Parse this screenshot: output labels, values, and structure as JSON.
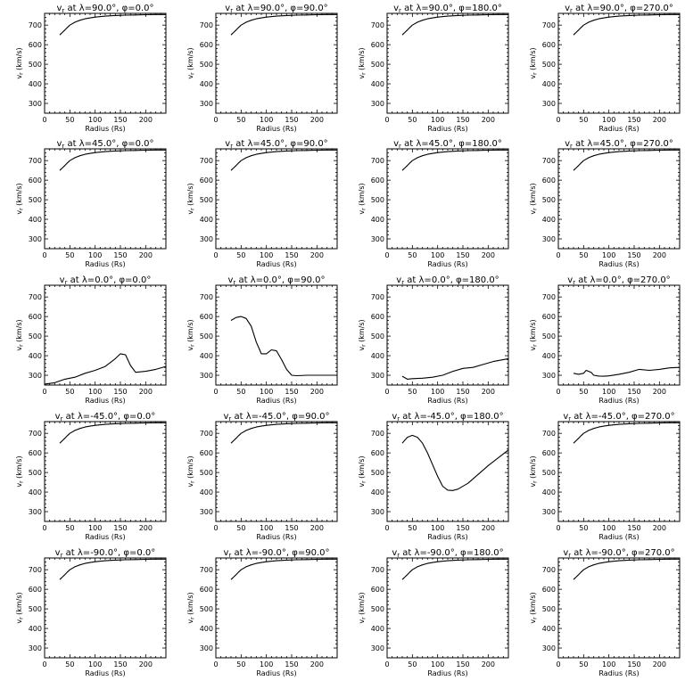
{
  "chart_data": [
    {
      "type": "line",
      "title": "v_r at λ=90.0°, φ=0.0°",
      "xlabel": "Radius (Rs)",
      "ylabel": "v_r (km/s)",
      "xlim": [
        0,
        240
      ],
      "ylim": [
        250,
        760
      ],
      "x": [
        30,
        35,
        40,
        45,
        50,
        60,
        70,
        80,
        90,
        100,
        120,
        140,
        160,
        180,
        200,
        220,
        240
      ],
      "series": [
        {
          "values": [
            650,
            662,
            675,
            688,
            700,
            715,
            725,
            732,
            737,
            741,
            746,
            749,
            751,
            752,
            753,
            754,
            754
          ]
        }
      ]
    },
    {
      "type": "line",
      "title": "v_r at λ=90.0°, φ=90.0°",
      "xlabel": "Radius (Rs)",
      "ylabel": "v_r (km/s)",
      "xlim": [
        0,
        240
      ],
      "ylim": [
        250,
        760
      ],
      "x": [
        30,
        35,
        40,
        45,
        50,
        60,
        70,
        80,
        90,
        100,
        120,
        140,
        160,
        180,
        200,
        220,
        240
      ],
      "series": [
        {
          "values": [
            650,
            662,
            675,
            688,
            700,
            715,
            725,
            732,
            737,
            741,
            746,
            749,
            751,
            752,
            753,
            754,
            754
          ]
        }
      ]
    },
    {
      "type": "line",
      "title": "v_r at λ=90.0°, φ=180.0°",
      "xlabel": "Radius (Rs)",
      "ylabel": "v_r (km/s)",
      "xlim": [
        0,
        240
      ],
      "ylim": [
        250,
        760
      ],
      "x": [
        30,
        35,
        40,
        45,
        50,
        60,
        70,
        80,
        90,
        100,
        120,
        140,
        160,
        180,
        200,
        220,
        240
      ],
      "series": [
        {
          "values": [
            650,
            662,
            675,
            688,
            700,
            715,
            725,
            732,
            737,
            741,
            746,
            749,
            751,
            752,
            753,
            754,
            754
          ]
        }
      ]
    },
    {
      "type": "line",
      "title": "v_r at λ=90.0°, φ=270.0°",
      "xlabel": "Radius (Rs)",
      "ylabel": "v_r (km/s)",
      "xlim": [
        0,
        240
      ],
      "ylim": [
        250,
        760
      ],
      "x": [
        30,
        35,
        40,
        45,
        50,
        60,
        70,
        80,
        90,
        100,
        120,
        140,
        160,
        180,
        200,
        220,
        240
      ],
      "series": [
        {
          "values": [
            650,
            662,
            675,
            688,
            700,
            715,
            725,
            732,
            737,
            741,
            746,
            749,
            751,
            752,
            753,
            754,
            754
          ]
        }
      ]
    },
    {
      "type": "line",
      "title": "v_r at λ=45.0°, φ=0.0°",
      "xlabel": "Radius (Rs)",
      "ylabel": "v_r (km/s)",
      "xlim": [
        0,
        240
      ],
      "ylim": [
        250,
        760
      ],
      "x": [
        30,
        35,
        40,
        45,
        50,
        60,
        70,
        80,
        90,
        100,
        120,
        140,
        160,
        180,
        200,
        220,
        240
      ],
      "series": [
        {
          "values": [
            650,
            662,
            675,
            688,
            700,
            715,
            725,
            732,
            737,
            741,
            746,
            749,
            751,
            752,
            753,
            754,
            754
          ]
        }
      ]
    },
    {
      "type": "line",
      "title": "v_r at λ=45.0°, φ=90.0°",
      "xlabel": "Radius (Rs)",
      "ylabel": "v_r (km/s)",
      "xlim": [
        0,
        240
      ],
      "ylim": [
        250,
        760
      ],
      "x": [
        30,
        35,
        40,
        45,
        50,
        60,
        70,
        80,
        90,
        100,
        120,
        140,
        160,
        180,
        200,
        220,
        240
      ],
      "series": [
        {
          "values": [
            650,
            662,
            675,
            688,
            700,
            715,
            725,
            732,
            737,
            741,
            746,
            749,
            751,
            752,
            753,
            754,
            754
          ]
        }
      ]
    },
    {
      "type": "line",
      "title": "v_r at λ=45.0°, φ=180.0°",
      "xlabel": "Radius (Rs)",
      "ylabel": "v_r (km/s)",
      "xlim": [
        0,
        240
      ],
      "ylim": [
        250,
        760
      ],
      "x": [
        30,
        35,
        40,
        45,
        50,
        60,
        70,
        80,
        90,
        100,
        120,
        140,
        160,
        180,
        200,
        220,
        240
      ],
      "series": [
        {
          "values": [
            650,
            662,
            675,
            688,
            700,
            715,
            725,
            732,
            737,
            741,
            746,
            749,
            751,
            752,
            753,
            754,
            754
          ]
        }
      ]
    },
    {
      "type": "line",
      "title": "v_r at λ=45.0°, φ=270.0°",
      "xlabel": "Radius (Rs)",
      "ylabel": "v_r (km/s)",
      "xlim": [
        0,
        240
      ],
      "ylim": [
        250,
        760
      ],
      "x": [
        30,
        35,
        40,
        45,
        50,
        60,
        70,
        80,
        90,
        100,
        120,
        140,
        160,
        180,
        200,
        220,
        240
      ],
      "series": [
        {
          "values": [
            650,
            662,
            675,
            688,
            700,
            715,
            725,
            732,
            737,
            741,
            746,
            749,
            751,
            752,
            753,
            754,
            754
          ]
        }
      ]
    },
    {
      "type": "line",
      "title": "v_r at λ=0.0°, φ=0.0°",
      "xlabel": "Radius (Rs)",
      "ylabel": "v_r (km/s)",
      "xlim": [
        0,
        240
      ],
      "ylim": [
        250,
        760
      ],
      "x": [
        0,
        20,
        40,
        60,
        80,
        100,
        120,
        140,
        150,
        160,
        170,
        180,
        200,
        220,
        240
      ],
      "series": [
        {
          "values": [
            255,
            262,
            280,
            290,
            310,
            325,
            345,
            385,
            410,
            405,
            350,
            315,
            320,
            330,
            345
          ]
        }
      ]
    },
    {
      "type": "line",
      "title": "v_r at λ=0.0°, φ=90.0°",
      "xlabel": "Radius (Rs)",
      "ylabel": "v_r (km/s)",
      "xlim": [
        0,
        240
      ],
      "ylim": [
        250,
        760
      ],
      "x": [
        30,
        40,
        50,
        60,
        70,
        80,
        90,
        100,
        110,
        120,
        130,
        140,
        150,
        160,
        180,
        200,
        220,
        240
      ],
      "series": [
        {
          "values": [
            580,
            595,
            600,
            590,
            550,
            470,
            410,
            410,
            430,
            425,
            380,
            330,
            300,
            298,
            300,
            300,
            300,
            300
          ]
        }
      ]
    },
    {
      "type": "line",
      "title": "v_r at λ=0.0°, φ=180.0°",
      "xlabel": "Radius (Rs)",
      "ylabel": "v_r (km/s)",
      "xlim": [
        0,
        240
      ],
      "ylim": [
        250,
        760
      ],
      "x": [
        30,
        40,
        50,
        70,
        90,
        110,
        130,
        150,
        170,
        190,
        210,
        240
      ],
      "series": [
        {
          "values": [
            295,
            280,
            283,
            285,
            290,
            300,
            320,
            335,
            340,
            355,
            370,
            385
          ]
        }
      ]
    },
    {
      "type": "line",
      "title": "v_r at λ=0.0°, φ=270.0°",
      "xlabel": "Radius (Rs)",
      "ylabel": "v_r (km/s)",
      "xlim": [
        0,
        240
      ],
      "ylim": [
        250,
        760
      ],
      "x": [
        30,
        40,
        50,
        55,
        60,
        65,
        70,
        80,
        90,
        100,
        120,
        140,
        160,
        180,
        200,
        220,
        240
      ],
      "series": [
        {
          "values": [
            310,
            305,
            310,
            325,
            320,
            315,
            300,
            296,
            295,
            297,
            305,
            315,
            330,
            325,
            330,
            338,
            340
          ]
        }
      ]
    },
    {
      "type": "line",
      "title": "v_r at λ=-45.0°, φ=0.0°",
      "xlabel": "Radius (Rs)",
      "ylabel": "v_r (km/s)",
      "xlim": [
        0,
        240
      ],
      "ylim": [
        250,
        760
      ],
      "x": [
        30,
        35,
        40,
        45,
        50,
        60,
        70,
        80,
        90,
        100,
        120,
        140,
        160,
        180,
        200,
        220,
        240
      ],
      "series": [
        {
          "values": [
            650,
            662,
            675,
            688,
            700,
            715,
            725,
            732,
            737,
            741,
            746,
            749,
            751,
            752,
            753,
            754,
            754
          ]
        }
      ]
    },
    {
      "type": "line",
      "title": "v_r at λ=-45.0°, φ=90.0°",
      "xlabel": "Radius (Rs)",
      "ylabel": "v_r (km/s)",
      "xlim": [
        0,
        240
      ],
      "ylim": [
        250,
        760
      ],
      "x": [
        30,
        35,
        40,
        45,
        50,
        60,
        70,
        80,
        90,
        100,
        120,
        140,
        160,
        180,
        200,
        220,
        240
      ],
      "series": [
        {
          "values": [
            650,
            662,
            675,
            688,
            700,
            715,
            725,
            732,
            737,
            741,
            746,
            749,
            751,
            752,
            753,
            754,
            754
          ]
        }
      ]
    },
    {
      "type": "line",
      "title": "v_r at λ=-45.0°, φ=180.0°",
      "xlabel": "Radius (Rs)",
      "ylabel": "v_r (km/s)",
      "xlim": [
        0,
        240
      ],
      "ylim": [
        250,
        760
      ],
      "x": [
        30,
        40,
        50,
        60,
        70,
        80,
        90,
        100,
        110,
        120,
        130,
        140,
        160,
        180,
        200,
        220,
        240
      ],
      "series": [
        {
          "values": [
            650,
            680,
            690,
            680,
            650,
            600,
            540,
            480,
            430,
            410,
            408,
            415,
            445,
            490,
            535,
            575,
            615
          ]
        }
      ]
    },
    {
      "type": "line",
      "title": "v_r at λ=-45.0°, φ=270.0°",
      "xlabel": "Radius (Rs)",
      "ylabel": "v_r (km/s)",
      "xlim": [
        0,
        240
      ],
      "ylim": [
        250,
        760
      ],
      "x": [
        30,
        35,
        40,
        45,
        50,
        60,
        70,
        80,
        90,
        100,
        120,
        140,
        160,
        180,
        200,
        220,
        240
      ],
      "series": [
        {
          "values": [
            650,
            662,
            675,
            688,
            700,
            715,
            725,
            732,
            737,
            741,
            746,
            749,
            751,
            752,
            753,
            754,
            754
          ]
        }
      ]
    },
    {
      "type": "line",
      "title": "v_r at λ=-90.0°, φ=0.0°",
      "xlabel": "Radius (Rs)",
      "ylabel": "v_r (km/s)",
      "xlim": [
        0,
        240
      ],
      "ylim": [
        250,
        760
      ],
      "x": [
        30,
        35,
        40,
        45,
        50,
        60,
        70,
        80,
        90,
        100,
        120,
        140,
        160,
        180,
        200,
        220,
        240
      ],
      "series": [
        {
          "values": [
            650,
            662,
            675,
            688,
            700,
            715,
            725,
            732,
            737,
            741,
            746,
            749,
            751,
            752,
            753,
            754,
            754
          ]
        }
      ]
    },
    {
      "type": "line",
      "title": "v_r at λ=-90.0°, φ=90.0°",
      "xlabel": "Radius (Rs)",
      "ylabel": "v_r (km/s)",
      "xlim": [
        0,
        240
      ],
      "ylim": [
        250,
        760
      ],
      "x": [
        30,
        35,
        40,
        45,
        50,
        60,
        70,
        80,
        90,
        100,
        120,
        140,
        160,
        180,
        200,
        220,
        240
      ],
      "series": [
        {
          "values": [
            650,
            662,
            675,
            688,
            700,
            715,
            725,
            732,
            737,
            741,
            746,
            749,
            751,
            752,
            753,
            754,
            754
          ]
        }
      ]
    },
    {
      "type": "line",
      "title": "v_r at λ=-90.0°, φ=180.0°",
      "xlabel": "Radius (Rs)",
      "ylabel": "v_r (km/s)",
      "xlim": [
        0,
        240
      ],
      "ylim": [
        250,
        760
      ],
      "x": [
        30,
        35,
        40,
        45,
        50,
        60,
        70,
        80,
        90,
        100,
        120,
        140,
        160,
        180,
        200,
        220,
        240
      ],
      "series": [
        {
          "values": [
            650,
            662,
            675,
            688,
            700,
            715,
            725,
            732,
            737,
            741,
            746,
            749,
            751,
            752,
            753,
            754,
            754
          ]
        }
      ]
    },
    {
      "type": "line",
      "title": "v_r at λ=-90.0°, φ=270.0°",
      "xlabel": "Radius (Rs)",
      "ylabel": "v_r (km/s)",
      "xlim": [
        0,
        240
      ],
      "ylim": [
        250,
        760
      ],
      "x": [
        30,
        35,
        40,
        45,
        50,
        60,
        70,
        80,
        90,
        100,
        120,
        140,
        160,
        180,
        200,
        220,
        240
      ],
      "series": [
        {
          "values": [
            650,
            662,
            675,
            688,
            700,
            715,
            725,
            732,
            737,
            741,
            746,
            749,
            751,
            752,
            753,
            754,
            754
          ]
        }
      ]
    }
  ],
  "axes": {
    "x_ticks": [
      0,
      50,
      100,
      150,
      200
    ],
    "y_ticks": [
      300,
      400,
      500,
      600,
      700
    ]
  }
}
